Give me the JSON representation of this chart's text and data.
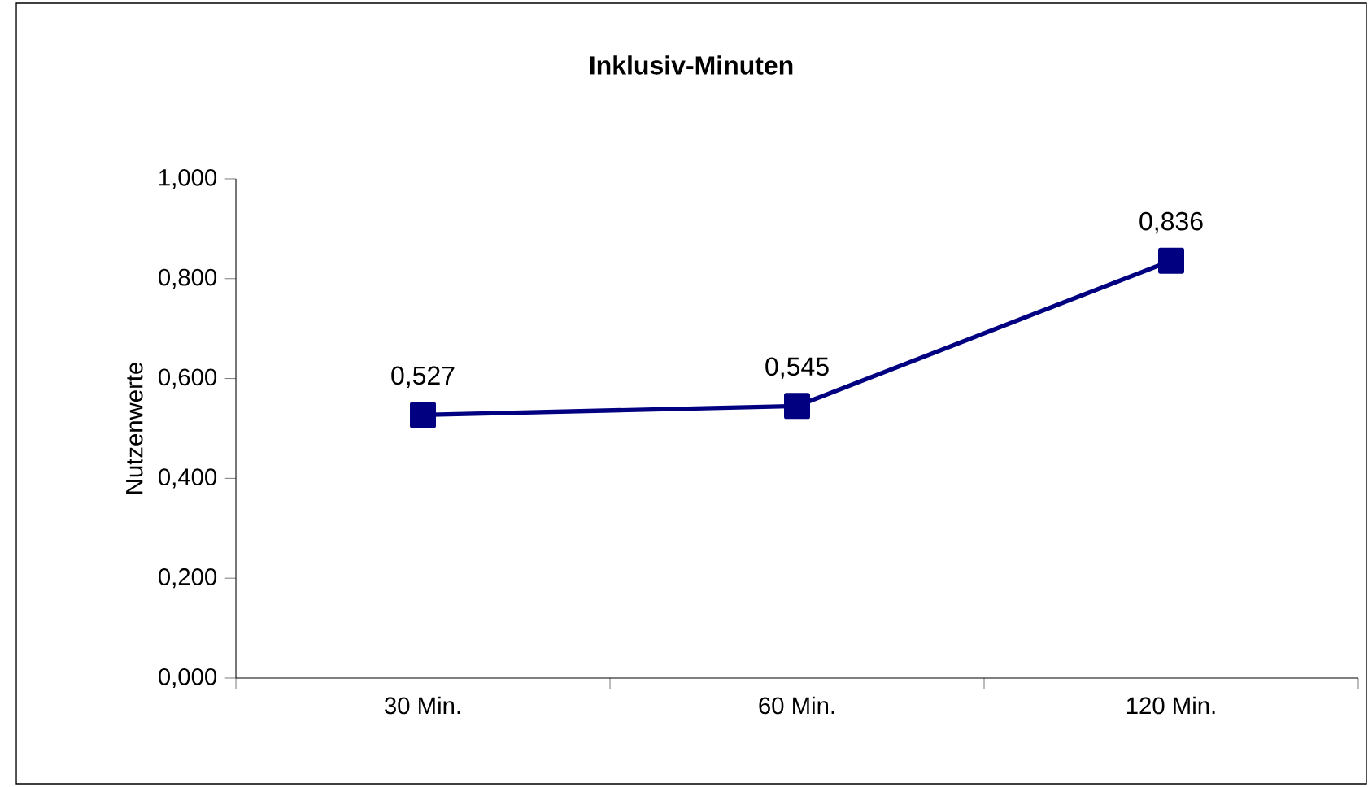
{
  "chart_data": {
    "type": "line",
    "title": "Inklusiv-Minuten",
    "ylabel": "Nutzenwerte",
    "categories": [
      "30 Min.",
      "60 Min.",
      "120 Min."
    ],
    "series": [
      {
        "color": "#000080",
        "values": [
          0.527,
          0.545,
          0.836
        ],
        "value_labels": [
          "0,527",
          "0,545",
          "0,836"
        ]
      }
    ],
    "ylim": [
      0,
      1
    ],
    "yticks": [
      {
        "value": 0,
        "label": "0,000"
      },
      {
        "value": 0.2,
        "label": "0,200"
      },
      {
        "value": 0.4,
        "label": "0,400"
      },
      {
        "value": 0.6,
        "label": "0,600"
      },
      {
        "value": 0.8,
        "label": "0,800"
      },
      {
        "value": 1.0,
        "label": "1,000"
      }
    ],
    "grid": false,
    "marker": "square",
    "line_style": "solid"
  }
}
